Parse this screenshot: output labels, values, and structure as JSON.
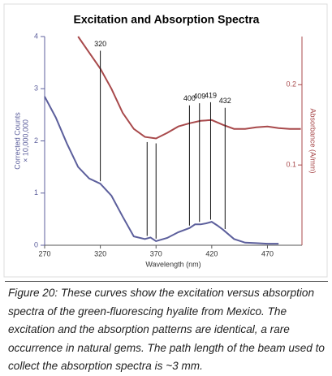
{
  "chart_data": {
    "type": "line",
    "title": "Excitation and Absorption Spectra",
    "x_label": "Wavelength (nm)",
    "y_label": [
      "Corrected Counts",
      "× 10,000,000"
    ],
    "y2_label": "Absorbance (A/mm)",
    "xlim": [
      270,
      501
    ],
    "xticks": [
      270,
      320,
      370,
      420,
      470
    ],
    "ylim": [
      0,
      4
    ],
    "yticks": [
      0,
      1,
      2,
      3,
      4
    ],
    "y2lim": [
      0,
      0.26
    ],
    "y2ticks": [
      0.1,
      0.2
    ],
    "series": [
      {
        "name": "Excitation",
        "color": "#5c5f9c",
        "axis": "y",
        "x": [
          270,
          280,
          290,
          300,
          310,
          320,
          330,
          340,
          350,
          360,
          365,
          370,
          380,
          390,
          400,
          405,
          410,
          415,
          420,
          425,
          430,
          440,
          450,
          460,
          470,
          480
        ],
        "values": [
          2.85,
          2.45,
          1.95,
          1.5,
          1.28,
          1.18,
          0.95,
          0.55,
          0.17,
          0.12,
          0.15,
          0.08,
          0.14,
          0.25,
          0.33,
          0.4,
          0.4,
          0.42,
          0.45,
          0.38,
          0.3,
          0.12,
          0.05,
          0.04,
          0.03,
          0.03
        ]
      },
      {
        "name": "Absorption",
        "color": "#a8494b",
        "axis": "y2",
        "x": [
          300,
          310,
          320,
          330,
          340,
          350,
          360,
          370,
          380,
          390,
          400,
          410,
          420,
          430,
          440,
          450,
          460,
          470,
          480,
          490,
          500
        ],
        "values": [
          0.26,
          0.24,
          0.22,
          0.195,
          0.165,
          0.145,
          0.135,
          0.133,
          0.14,
          0.148,
          0.152,
          0.155,
          0.156,
          0.15,
          0.145,
          0.145,
          0.147,
          0.148,
          0.146,
          0.145,
          0.145
        ]
      }
    ],
    "labeled_markers": [
      320,
      400,
      409,
      419,
      432
    ],
    "unlabeled_markers": [
      362,
      370
    ],
    "caption": "Figure 20: These curves show the excitation versus absorption spectra of the green-fluorescing hyalite from Mexico. The excitation and the absorption patterns are identical, a rare occurrence in natural gems. The path length of the beam used to collect the absorption spectra is ~3 mm."
  }
}
